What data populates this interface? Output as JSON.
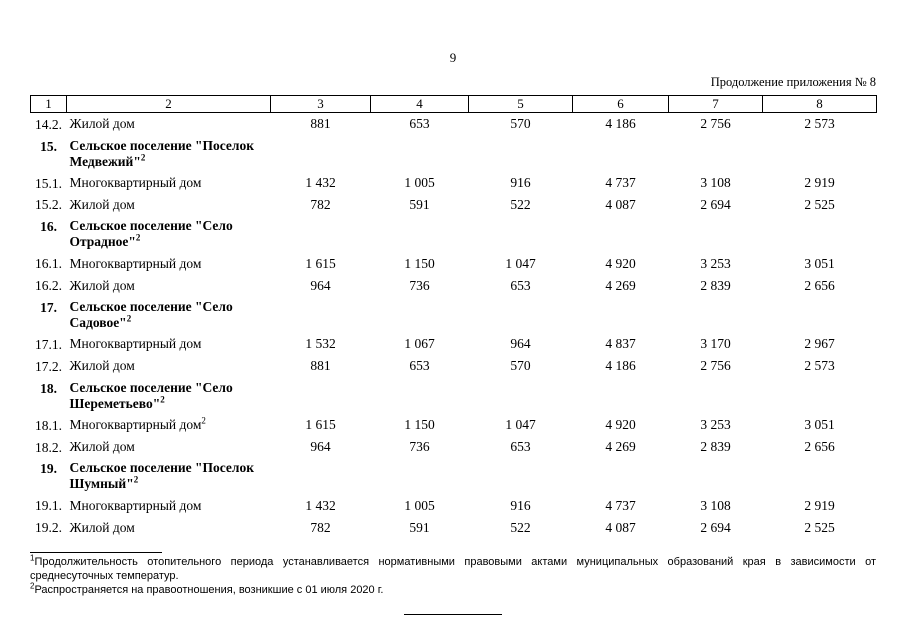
{
  "page": {
    "number": "9",
    "header_right": "Продолжение приложения № 8"
  },
  "table": {
    "columns": [
      "1",
      "2",
      "3",
      "4",
      "5",
      "6",
      "7",
      "8"
    ],
    "rows": [
      {
        "num": "14.2.",
        "name": "Жилой дом",
        "sup": "",
        "values": [
          "881",
          "653",
          "570",
          "4 186",
          "2 756",
          "2 573"
        ]
      },
      {
        "num": "15.",
        "name": "Сельское поселение \"Поселок Медвежий\"",
        "sup": "2",
        "values": []
      },
      {
        "num": "15.1.",
        "name": "Многоквартирный дом",
        "sup": "",
        "values": [
          "1 432",
          "1 005",
          "916",
          "4 737",
          "3 108",
          "2 919"
        ]
      },
      {
        "num": "15.2.",
        "name": "Жилой дом",
        "sup": "",
        "values": [
          "782",
          "591",
          "522",
          "4 087",
          "2 694",
          "2 525"
        ]
      },
      {
        "num": "16.",
        "name": "Сельское поселение \"Село Отрадное\"",
        "sup": "2",
        "values": []
      },
      {
        "num": "16.1.",
        "name": "Многоквартирный дом",
        "sup": "",
        "values": [
          "1 615",
          "1 150",
          "1 047",
          "4 920",
          "3 253",
          "3 051"
        ]
      },
      {
        "num": "16.2.",
        "name": "Жилой дом",
        "sup": "",
        "values": [
          "964",
          "736",
          "653",
          "4 269",
          "2 839",
          "2 656"
        ]
      },
      {
        "num": "17.",
        "name": "Сельское поселение \"Село Садовое\"",
        "sup": "2",
        "values": []
      },
      {
        "num": "17.1.",
        "name": "Многоквартирный дом",
        "sup": "",
        "values": [
          "1 532",
          "1 067",
          "964",
          "4 837",
          "3 170",
          "2 967"
        ]
      },
      {
        "num": "17.2.",
        "name": "Жилой дом",
        "sup": "",
        "values": [
          "881",
          "653",
          "570",
          "4 186",
          "2 756",
          "2 573"
        ]
      },
      {
        "num": "18.",
        "name": "Сельское поселение \"Село Шереметьево\"",
        "sup": "2",
        "values": []
      },
      {
        "num": "18.1.",
        "name": "Многоквартирный дом",
        "sup": "2",
        "values": [
          "1 615",
          "1 150",
          "1 047",
          "4 920",
          "3 253",
          "3 051"
        ]
      },
      {
        "num": "18.2.",
        "name": "Жилой дом",
        "sup": "",
        "values": [
          "964",
          "736",
          "653",
          "4 269",
          "2 839",
          "2 656"
        ]
      },
      {
        "num": "19.",
        "name": "Сельское поселение \"Поселок Шумный\"",
        "sup": "2",
        "values": []
      },
      {
        "num": "19.1.",
        "name": "Многоквартирный дом",
        "sup": "",
        "values": [
          "1 432",
          "1 005",
          "916",
          "4 737",
          "3 108",
          "2 919"
        ]
      },
      {
        "num": "19.2.",
        "name": "Жилой дом",
        "sup": "",
        "values": [
          "782",
          "591",
          "522",
          "4 087",
          "2 694",
          "2 525"
        ]
      }
    ]
  },
  "footnotes": [
    {
      "sup": "1",
      "text": "Продолжительность отопительного периода устанавливается нормативными правовыми актами муниципальных образований края в зависимости от среднесуточных температур."
    },
    {
      "sup": "2",
      "text": "Распространяется на правоотношения, возникшие с 01 июля 2020 г."
    }
  ]
}
